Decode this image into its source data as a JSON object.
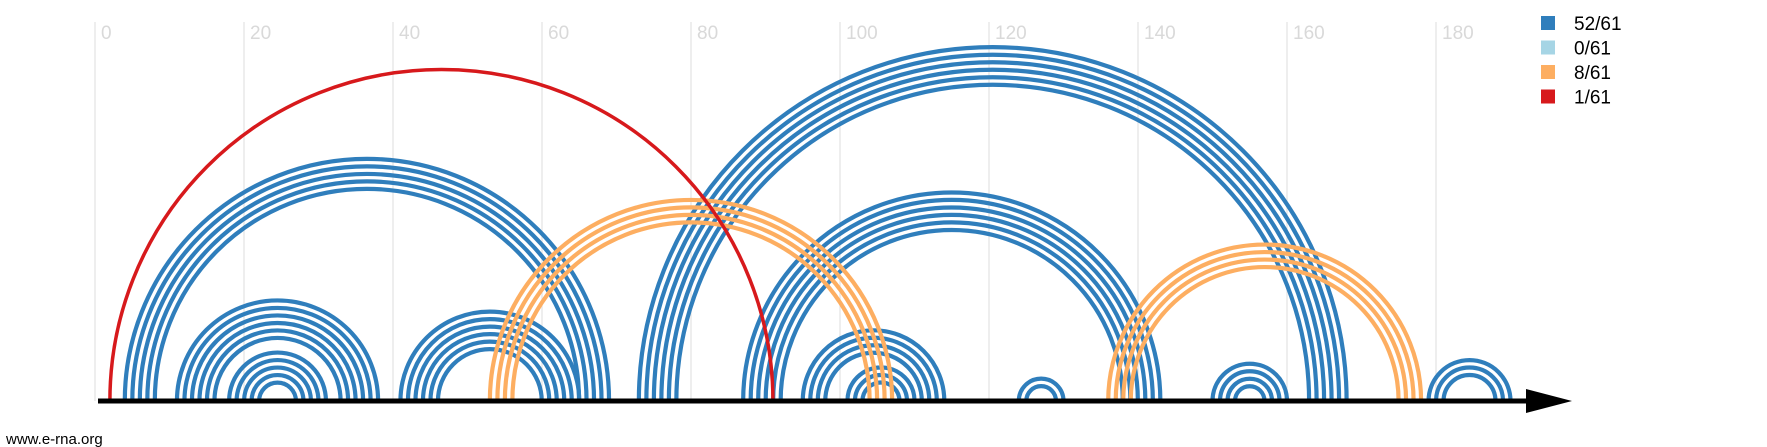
{
  "chart_data": {
    "type": "arc",
    "x_ticks": [
      0,
      20,
      40,
      60,
      80,
      100,
      120,
      140,
      160,
      180
    ],
    "x_tick_labels": [
      "0",
      "20",
      "40",
      "60",
      "80",
      "100",
      "120",
      "140",
      "160",
      "180"
    ],
    "xlim": [
      0,
      199
    ],
    "grid": true,
    "legend": {
      "placement": "top-right",
      "items": [
        {
          "label": "52/61",
          "color": "#2f7ebc"
        },
        {
          "label": "0/61",
          "color": "#a6d5e5"
        },
        {
          "label": "8/61",
          "color": "#fdae61"
        },
        {
          "label": "1/61",
          "color": "#d7191c"
        }
      ]
    },
    "series": [
      {
        "legend_index": 0,
        "color": "#2f7ebc",
        "helices": [
          {
            "i": 4,
            "j": 69,
            "n": 5
          },
          {
            "i": 11,
            "j": 38,
            "n": 6
          },
          {
            "i": 18,
            "j": 31,
            "n": 5
          },
          {
            "i": 41,
            "j": 65,
            "n": 6
          },
          {
            "i": 73,
            "j": 168,
            "n": 6
          },
          {
            "i": 87,
            "j": 143,
            "n": 6
          },
          {
            "i": 95,
            "j": 114,
            "n": 4
          },
          {
            "i": 101,
            "j": 110,
            "n": 3
          },
          {
            "i": 124,
            "j": 130,
            "n": 2
          },
          {
            "i": 150,
            "j": 160,
            "n": 4
          },
          {
            "i": 179,
            "j": 190,
            "n": 3
          }
        ]
      },
      {
        "legend_index": 2,
        "color": "#fdae61",
        "helices": [
          {
            "i": 53,
            "j": 107,
            "n": 4
          },
          {
            "i": 136,
            "j": 178,
            "n": 4
          }
        ]
      },
      {
        "legend_index": 3,
        "color": "#d7191c",
        "helices": [
          {
            "i": 2,
            "j": 91,
            "n": 1
          }
        ]
      }
    ]
  },
  "footer": {
    "credit": "www.e-rna.org"
  }
}
